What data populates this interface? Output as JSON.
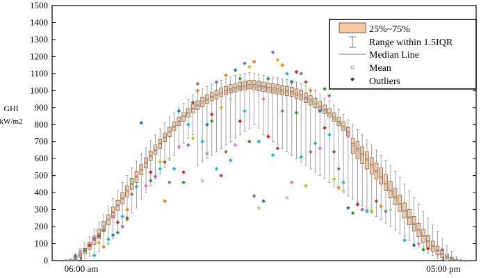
{
  "chart_data": {
    "type": "box",
    "ylabel": "GHI",
    "yunit": "kW/m2",
    "ylim": [
      0,
      1500
    ],
    "yticks": [
      0,
      100,
      200,
      300,
      400,
      500,
      600,
      700,
      800,
      900,
      1000,
      1100,
      1200,
      1300,
      1400,
      1500
    ],
    "x_tick_labels": [
      "06:00 am",
      "05:00 pm"
    ],
    "grid": false,
    "legend_position": "top-right",
    "legend": {
      "box": "25%~75%",
      "whisker": "Range within 1.5IQR",
      "median": "Median Line",
      "mean": "Mean",
      "outliers": "Outliers"
    },
    "colors": {
      "box_fill": "#f8c9a0",
      "box_stroke": "#6b5a4a",
      "whisker": "#8c8c8c",
      "mean": "#888888",
      "outlier": "#3a3a3a",
      "outlier_palette": [
        "#1f77b4",
        "#e377c2",
        "#2ca02c",
        "#d62728",
        "#9467bd",
        "#17becf",
        "#bcbd22",
        "#8c564b",
        "#ff7f0e",
        "#7f7f7f",
        "#98df8a",
        "#1fb4d2"
      ]
    },
    "series": [
      {
        "q1": 0,
        "median": 0,
        "q3": 2,
        "mean": 1,
        "low": 0,
        "high": 4,
        "outliers": []
      },
      {
        "q1": 0,
        "median": 2,
        "q3": 5,
        "mean": 3,
        "low": 0,
        "high": 10,
        "outliers": []
      },
      {
        "q1": 5,
        "median": 12,
        "q3": 22,
        "mean": 14,
        "low": 0,
        "high": 40,
        "outliers": [
          28
        ]
      },
      {
        "q1": 20,
        "median": 32,
        "q3": 45,
        "mean": 33,
        "low": 5,
        "high": 70,
        "outliers": [
          55
        ]
      },
      {
        "q1": 40,
        "median": 55,
        "q3": 72,
        "mean": 56,
        "low": 15,
        "high": 105,
        "outliers": [
          60
        ]
      },
      {
        "q1": 65,
        "median": 85,
        "q3": 108,
        "mean": 86,
        "low": 25,
        "high": 140,
        "outliers": [
          90
        ]
      },
      {
        "q1": 95,
        "median": 120,
        "q3": 145,
        "mean": 121,
        "low": 35,
        "high": 185,
        "outliers": [
          130,
          30
        ]
      },
      {
        "q1": 130,
        "median": 160,
        "q3": 185,
        "mean": 158,
        "low": 55,
        "high": 225,
        "outliers": [
          105,
          145
        ]
      },
      {
        "q1": 170,
        "median": 200,
        "q3": 230,
        "mean": 200,
        "low": 80,
        "high": 270,
        "outliers": [
          80,
          180
        ]
      },
      {
        "q1": 210,
        "median": 240,
        "q3": 270,
        "mean": 241,
        "low": 100,
        "high": 320,
        "outliers": [
          100,
          125
        ]
      },
      {
        "q1": 250,
        "median": 285,
        "q3": 315,
        "mean": 284,
        "low": 130,
        "high": 365,
        "outliers": [
          150,
          260
        ]
      },
      {
        "q1": 295,
        "median": 325,
        "q3": 355,
        "mean": 326,
        "low": 170,
        "high": 410,
        "outliers": [
          165,
          225
        ]
      },
      {
        "q1": 335,
        "median": 365,
        "q3": 400,
        "mean": 366,
        "low": 200,
        "high": 460,
        "outliers": [
          200,
          260
        ]
      },
      {
        "q1": 375,
        "median": 410,
        "q3": 440,
        "mean": 408,
        "low": 240,
        "high": 500,
        "outliers": [
          240,
          250,
          300
        ]
      },
      {
        "q1": 420,
        "median": 450,
        "q3": 485,
        "mean": 452,
        "low": 280,
        "high": 545,
        "outliers": [
          390,
          470
        ]
      },
      {
        "q1": 460,
        "median": 495,
        "q3": 525,
        "mean": 494,
        "low": 310,
        "high": 585,
        "outliers": [
          435
        ]
      },
      {
        "q1": 505,
        "median": 535,
        "q3": 565,
        "mean": 534,
        "low": 360,
        "high": 630,
        "outliers": [
          810
        ]
      },
      {
        "q1": 545,
        "median": 575,
        "q3": 605,
        "mean": 576,
        "low": 400,
        "high": 665,
        "outliers": [
          440
        ]
      },
      {
        "q1": 590,
        "median": 615,
        "q3": 645,
        "mean": 616,
        "low": 440,
        "high": 705,
        "outliers": [
          470,
          520
        ]
      },
      {
        "q1": 625,
        "median": 650,
        "q3": 680,
        "mean": 651,
        "low": 480,
        "high": 740,
        "outliers": [
          495
        ]
      },
      {
        "q1": 660,
        "median": 690,
        "q3": 715,
        "mean": 688,
        "low": 510,
        "high": 775,
        "outliers": [
          540,
          580
        ]
      },
      {
        "q1": 700,
        "median": 725,
        "q3": 750,
        "mean": 724,
        "low": 550,
        "high": 810,
        "outliers": [
          580,
          350
        ]
      },
      {
        "q1": 730,
        "median": 760,
        "q3": 785,
        "mean": 758,
        "low": 590,
        "high": 845,
        "outliers": [
          460,
          600
        ]
      },
      {
        "q1": 765,
        "median": 790,
        "q3": 815,
        "mean": 789,
        "low": 620,
        "high": 870,
        "outliers": [
          540
        ]
      },
      {
        "q1": 795,
        "median": 820,
        "q3": 845,
        "mean": 819,
        "low": 660,
        "high": 900,
        "outliers": [
          880,
          670
        ]
      },
      {
        "q1": 820,
        "median": 850,
        "q3": 870,
        "mean": 847,
        "low": 690,
        "high": 925,
        "outliers": [
          460,
          520
        ]
      },
      {
        "q1": 845,
        "median": 870,
        "q3": 895,
        "mean": 868,
        "low": 720,
        "high": 950,
        "outliers": [
          680,
          800
        ]
      },
      {
        "q1": 870,
        "median": 895,
        "q3": 920,
        "mean": 893,
        "low": 740,
        "high": 975,
        "outliers": [
          720,
          930
        ]
      },
      {
        "q1": 890,
        "median": 915,
        "q3": 940,
        "mean": 912,
        "low": 560,
        "high": 995,
        "outliers": [
          1000,
          1040
        ]
      },
      {
        "q1": 905,
        "median": 935,
        "q3": 960,
        "mean": 930,
        "low": 580,
        "high": 1010,
        "outliers": [
          470,
          700
        ]
      },
      {
        "q1": 925,
        "median": 950,
        "q3": 975,
        "mean": 947,
        "low": 600,
        "high": 1025,
        "outliers": [
          800,
          630
        ]
      },
      {
        "q1": 940,
        "median": 965,
        "q3": 990,
        "mean": 962,
        "low": 620,
        "high": 1040,
        "outliers": [
          820,
          860
        ]
      },
      {
        "q1": 950,
        "median": 980,
        "q3": 1000,
        "mean": 975,
        "low": 640,
        "high": 1050,
        "outliers": [
          1050,
          540
        ]
      },
      {
        "q1": 965,
        "median": 990,
        "q3": 1015,
        "mean": 985,
        "low": 660,
        "high": 1060,
        "outliers": [
          900,
          500
        ]
      },
      {
        "q1": 975,
        "median": 1000,
        "q3": 1025,
        "mean": 995,
        "low": 680,
        "high": 1070,
        "outliers": [
          1090,
          640
        ]
      },
      {
        "q1": 985,
        "median": 1010,
        "q3": 1035,
        "mean": 1003,
        "low": 700,
        "high": 1080,
        "outliers": [
          950,
          590
        ]
      },
      {
        "q1": 990,
        "median": 1020,
        "q3": 1040,
        "mean": 1010,
        "low": 720,
        "high": 1090,
        "outliers": [
          1120,
          680
        ]
      },
      {
        "q1": 1000,
        "median": 1025,
        "q3": 1050,
        "mean": 1015,
        "low": 740,
        "high": 1095,
        "outliers": [
          1070,
          820
        ]
      },
      {
        "q1": 1005,
        "median": 1030,
        "q3": 1055,
        "mean": 1020,
        "low": 760,
        "high": 1100,
        "outliers": [
          1160,
          880
        ]
      },
      {
        "q1": 1010,
        "median": 1035,
        "q3": 1060,
        "mean": 1025,
        "low": 780,
        "high": 1105,
        "outliers": [
          1140,
          700
        ]
      },
      {
        "q1": 1005,
        "median": 1035,
        "q3": 1060,
        "mean": 1025,
        "low": 800,
        "high": 1100,
        "outliers": [
          1170,
          380
        ]
      },
      {
        "q1": 1000,
        "median": 1030,
        "q3": 1055,
        "mean": 1022,
        "low": 780,
        "high": 1095,
        "outliers": [
          310,
          700
        ]
      },
      {
        "q1": 995,
        "median": 1025,
        "q3": 1050,
        "mean": 1018,
        "low": 740,
        "high": 1090,
        "outliers": [
          350,
          950
        ]
      },
      {
        "q1": 990,
        "median": 1020,
        "q3": 1045,
        "mean": 1012,
        "low": 720,
        "high": 1085,
        "outliers": [
          1070,
          730
        ]
      },
      {
        "q1": 985,
        "median": 1015,
        "q3": 1040,
        "mean": 1005,
        "low": 700,
        "high": 1080,
        "outliers": [
          1225,
          620
        ]
      },
      {
        "q1": 980,
        "median": 1010,
        "q3": 1035,
        "mean": 1000,
        "low": 680,
        "high": 1075,
        "outliers": [
          1180,
          660
        ]
      },
      {
        "q1": 975,
        "median": 1005,
        "q3": 1030,
        "mean": 995,
        "low": 660,
        "high": 1070,
        "outliers": [
          1150,
          880
        ]
      },
      {
        "q1": 970,
        "median": 1000,
        "q3": 1025,
        "mean": 990,
        "low": 640,
        "high": 1065,
        "outliers": [
          370,
          1100
        ]
      },
      {
        "q1": 965,
        "median": 995,
        "q3": 1020,
        "mean": 985,
        "low": 620,
        "high": 1060,
        "outliers": [
          1050,
          460
        ]
      },
      {
        "q1": 955,
        "median": 985,
        "q3": 1010,
        "mean": 975,
        "low": 600,
        "high": 1050,
        "outliers": [
          870,
          1110
        ]
      },
      {
        "q1": 945,
        "median": 975,
        "q3": 1000,
        "mean": 965,
        "low": 580,
        "high": 1040,
        "outliers": [
          1100,
          610
        ]
      },
      {
        "q1": 930,
        "median": 960,
        "q3": 985,
        "mean": 950,
        "low": 560,
        "high": 1030,
        "outliers": [
          440,
          1050
        ]
      },
      {
        "q1": 915,
        "median": 945,
        "q3": 970,
        "mean": 935,
        "low": 540,
        "high": 1015,
        "outliers": [
          1000,
          640
        ]
      },
      {
        "q1": 900,
        "median": 930,
        "q3": 955,
        "mean": 920,
        "low": 520,
        "high": 1000,
        "outliers": [
          930,
          690
        ]
      },
      {
        "q1": 885,
        "median": 910,
        "q3": 935,
        "mean": 900,
        "low": 500,
        "high": 980,
        "outliers": [
          880,
          660
        ]
      },
      {
        "q1": 865,
        "median": 890,
        "q3": 915,
        "mean": 880,
        "low": 480,
        "high": 960,
        "outliers": [
          1010,
          780
        ]
      },
      {
        "q1": 845,
        "median": 870,
        "q3": 895,
        "mean": 860,
        "low": 460,
        "high": 940,
        "outliers": [
          970,
          740
        ]
      },
      {
        "q1": 820,
        "median": 845,
        "q3": 870,
        "mean": 835,
        "low": 440,
        "high": 915,
        "outliers": [
          480,
          640
        ]
      },
      {
        "q1": 795,
        "median": 820,
        "q3": 845,
        "mean": 810,
        "low": 420,
        "high": 890,
        "outliers": [
          430,
          540
        ]
      },
      {
        "q1": 765,
        "median": 790,
        "q3": 815,
        "mean": 780,
        "low": 400,
        "high": 860,
        "outliers": [
          410,
          460
        ]
      },
      {
        "q1": 735,
        "median": 760,
        "q3": 785,
        "mean": 750,
        "low": 380,
        "high": 830,
        "outliers": [
          310,
          730
        ]
      },
      {
        "q1": 630,
        "median": 690,
        "q3": 720,
        "mean": 675,
        "low": 360,
        "high": 800,
        "outliers": [
          280
        ]
      },
      {
        "q1": 600,
        "median": 660,
        "q3": 700,
        "mean": 650,
        "low": 340,
        "high": 770,
        "outliers": [
          330
        ]
      },
      {
        "q1": 570,
        "median": 630,
        "q3": 670,
        "mean": 620,
        "low": 320,
        "high": 740,
        "outliers": [
          300
        ]
      },
      {
        "q1": 540,
        "median": 600,
        "q3": 640,
        "mean": 590,
        "low": 300,
        "high": 710,
        "outliers": [
          290
        ]
      },
      {
        "q1": 510,
        "median": 565,
        "q3": 605,
        "mean": 555,
        "low": 280,
        "high": 680,
        "outliers": [
          290
        ]
      },
      {
        "q1": 480,
        "median": 530,
        "q3": 575,
        "mean": 520,
        "low": 260,
        "high": 650,
        "outliers": [
          350
        ]
      },
      {
        "q1": 450,
        "median": 495,
        "q3": 545,
        "mean": 490,
        "low": 240,
        "high": 620,
        "outliers": [
          320
        ]
      },
      {
        "q1": 410,
        "median": 455,
        "q3": 505,
        "mean": 450,
        "low": 220,
        "high": 590,
        "outliers": [
          290
        ]
      },
      {
        "q1": 370,
        "median": 415,
        "q3": 465,
        "mean": 410,
        "low": 200,
        "high": 560,
        "outliers": [
          300
        ]
      },
      {
        "q1": 330,
        "median": 375,
        "q3": 425,
        "mean": 372,
        "low": 180,
        "high": 525,
        "outliers": []
      },
      {
        "q1": 290,
        "median": 335,
        "q3": 385,
        "mean": 333,
        "low": 160,
        "high": 490,
        "outliers": []
      },
      {
        "q1": 250,
        "median": 295,
        "q3": 340,
        "mean": 293,
        "low": 140,
        "high": 450,
        "outliers": [
          120
        ]
      },
      {
        "q1": 210,
        "median": 255,
        "q3": 300,
        "mean": 254,
        "low": 120,
        "high": 410,
        "outliers": []
      },
      {
        "q1": 175,
        "median": 215,
        "q3": 260,
        "mean": 216,
        "low": 100,
        "high": 370,
        "outliers": [
          90
        ]
      },
      {
        "q1": 140,
        "median": 180,
        "q3": 220,
        "mean": 180,
        "low": 80,
        "high": 330,
        "outliers": [
          100
        ]
      },
      {
        "q1": 105,
        "median": 145,
        "q3": 185,
        "mean": 146,
        "low": 60,
        "high": 290,
        "outliers": [
          65
        ]
      },
      {
        "q1": 80,
        "median": 115,
        "q3": 150,
        "mean": 115,
        "low": 45,
        "high": 250,
        "outliers": [
          70
        ]
      },
      {
        "q1": 55,
        "median": 85,
        "q3": 115,
        "mean": 86,
        "low": 30,
        "high": 210,
        "outliers": []
      },
      {
        "q1": 35,
        "median": 60,
        "q3": 85,
        "mean": 60,
        "low": 15,
        "high": 170,
        "outliers": []
      },
      {
        "q1": 20,
        "median": 40,
        "q3": 60,
        "mean": 40,
        "low": 5,
        "high": 130,
        "outliers": [
          65
        ]
      },
      {
        "q1": 10,
        "median": 22,
        "q3": 38,
        "mean": 24,
        "low": 0,
        "high": 90,
        "outliers": []
      },
      {
        "q1": 3,
        "median": 10,
        "q3": 20,
        "mean": 11,
        "low": 0,
        "high": 55,
        "outliers": []
      },
      {
        "q1": 0,
        "median": 3,
        "q3": 8,
        "mean": 4,
        "low": 0,
        "high": 25,
        "outliers": []
      },
      {
        "q1": 0,
        "median": 0,
        "q3": 2,
        "mean": 1,
        "low": 0,
        "high": 8,
        "outliers": []
      },
      {
        "q1": 0,
        "median": 0,
        "q3": 0,
        "mean": 0,
        "low": 0,
        "high": 3,
        "outliers": []
      }
    ]
  }
}
